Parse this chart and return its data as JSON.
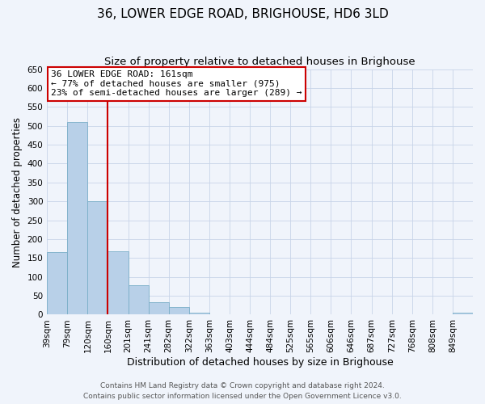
{
  "title": "36, LOWER EDGE ROAD, BRIGHOUSE, HD6 3LD",
  "subtitle": "Size of property relative to detached houses in Brighouse",
  "xlabel": "Distribution of detached houses by size in Brighouse",
  "ylabel": "Number of detached properties",
  "bar_values": [
    165,
    510,
    300,
    168,
    78,
    32,
    20,
    5,
    0,
    0,
    0,
    0,
    0,
    0,
    0,
    0,
    0,
    0,
    0,
    0,
    5
  ],
  "bin_labels": [
    "39sqm",
    "79sqm",
    "120sqm",
    "160sqm",
    "201sqm",
    "241sqm",
    "282sqm",
    "322sqm",
    "363sqm",
    "403sqm",
    "444sqm",
    "484sqm",
    "525sqm",
    "565sqm",
    "606sqm",
    "646sqm",
    "687sqm",
    "727sqm",
    "768sqm",
    "808sqm",
    "849sqm"
  ],
  "bar_color": "#b8d0e8",
  "bar_edge_color": "#7aaec8",
  "property_line_x": 3.0,
  "property_line_color": "#cc0000",
  "annotation_box_text": "36 LOWER EDGE ROAD: 161sqm\n← 77% of detached houses are smaller (975)\n23% of semi-detached houses are larger (289) →",
  "annotation_box_color": "#cc0000",
  "ylim": [
    0,
    650
  ],
  "yticks": [
    0,
    50,
    100,
    150,
    200,
    250,
    300,
    350,
    400,
    450,
    500,
    550,
    600,
    650
  ],
  "grid_color": "#c8d4e8",
  "background_color": "#f0f4fb",
  "footnote1": "Contains HM Land Registry data © Crown copyright and database right 2024.",
  "footnote2": "Contains public sector information licensed under the Open Government Licence v3.0.",
  "title_fontsize": 11,
  "subtitle_fontsize": 9.5,
  "xlabel_fontsize": 9,
  "ylabel_fontsize": 8.5,
  "tick_fontsize": 7.5,
  "annotation_fontsize": 8,
  "footnote_fontsize": 6.5
}
